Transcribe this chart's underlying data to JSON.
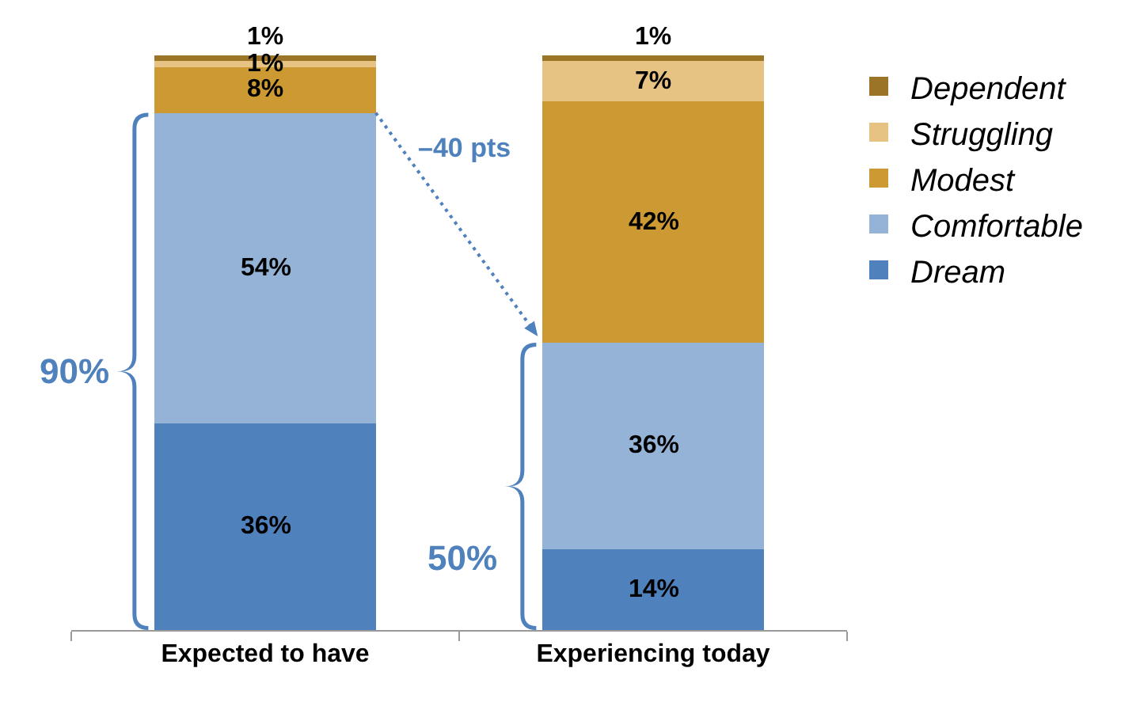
{
  "chart_data": {
    "type": "bar",
    "stacked": true,
    "categories": [
      "Expected to have",
      "Experiencing today"
    ],
    "series": [
      {
        "name": "Dream",
        "color": "#4f81bd",
        "values": [
          36,
          14
        ],
        "value_labels": [
          "36%",
          "14%"
        ]
      },
      {
        "name": "Comfortable",
        "color": "#95b3d7",
        "values": [
          54,
          36
        ],
        "value_labels": [
          "54%",
          "36%"
        ]
      },
      {
        "name": "Modest",
        "color": "#cc9933",
        "values": [
          8,
          42
        ],
        "value_labels": [
          "8%",
          "42%"
        ]
      },
      {
        "name": "Struggling",
        "color": "#e6c383",
        "values": [
          1,
          7
        ],
        "value_labels": [
          "1%",
          "7%"
        ]
      },
      {
        "name": "Dependent",
        "color": "#9c7428",
        "values": [
          1,
          1
        ],
        "value_labels": [
          "1%",
          "1%"
        ]
      }
    ],
    "annotations": [
      "90%",
      "–40 pts",
      "50%"
    ],
    "legend": "right",
    "grid": false
  }
}
